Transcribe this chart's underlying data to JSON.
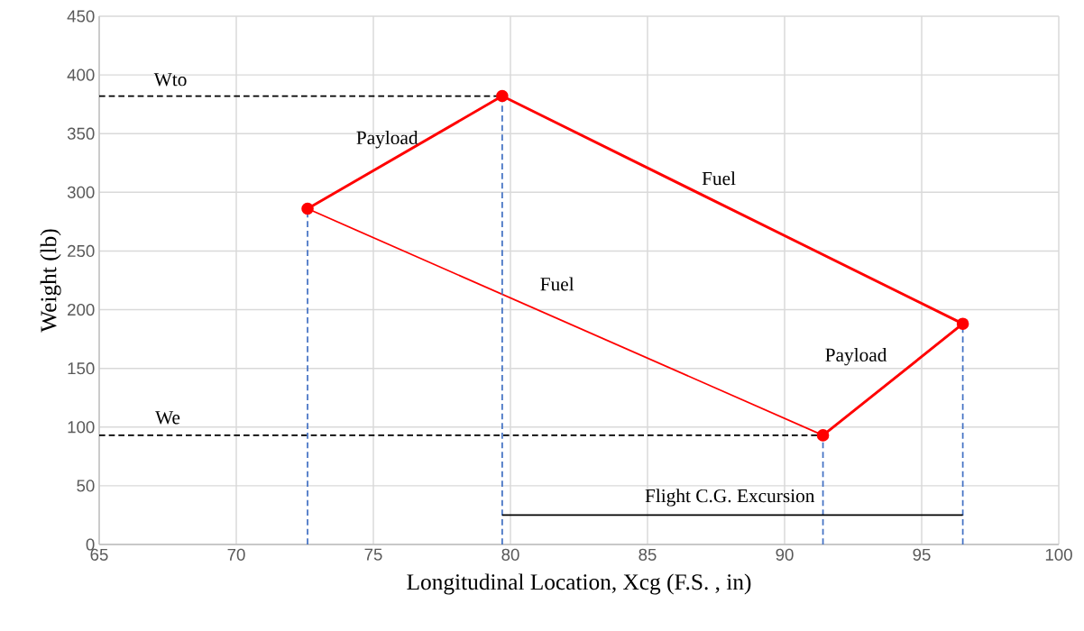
{
  "chart_data": {
    "type": "line",
    "xlabel": "Longitudinal Location, Xcg (F.S. , in)",
    "ylabel": "Weight (lb)",
    "xlim": [
      65,
      100
    ],
    "xticks": [
      65,
      70,
      75,
      80,
      85,
      90,
      95,
      100
    ],
    "ylim": [
      0,
      450
    ],
    "yticks": [
      0,
      50,
      100,
      150,
      200,
      250,
      300,
      350,
      400,
      450
    ],
    "grid": true,
    "series": [
      {
        "color": "#ff0000",
        "marker": "circle",
        "line_style": "solid",
        "x": [
          72.6,
          79.7,
          96.5,
          91.4
        ],
        "values": [
          286,
          382,
          188,
          93
        ]
      },
      {
        "color": "#ff0000",
        "marker": "none",
        "line_style": "solid",
        "x": [
          91.4,
          72.6
        ],
        "values": [
          93,
          286
        ]
      },
      {
        "color": "#000000",
        "marker": "none",
        "line_style": "dashed",
        "x": [
          65,
          79.7
        ],
        "values": [
          382,
          382
        ]
      },
      {
        "color": "#000000",
        "marker": "none",
        "line_style": "dashed",
        "x": [
          65,
          91.4
        ],
        "values": [
          93,
          93
        ]
      },
      {
        "color": "#4472c4",
        "marker": "none",
        "line_style": "dashed",
        "x": [
          72.6,
          72.6
        ],
        "values": [
          0,
          286
        ]
      },
      {
        "color": "#4472c4",
        "marker": "none",
        "line_style": "dashed",
        "x": [
          79.7,
          79.7
        ],
        "values": [
          0,
          382
        ]
      },
      {
        "color": "#4472c4",
        "marker": "none",
        "line_style": "dashed",
        "x": [
          91.4,
          91.4
        ],
        "values": [
          0,
          93
        ]
      },
      {
        "color": "#4472c4",
        "marker": "none",
        "line_style": "dashed",
        "x": [
          96.5,
          96.5
        ],
        "values": [
          0,
          188
        ]
      },
      {
        "color": "#000000",
        "marker": "none",
        "line_style": "solid",
        "x": [
          79.7,
          96.5
        ],
        "values": [
          25,
          25
        ]
      }
    ],
    "annotations": [
      "Wto",
      "We",
      "Payload",
      "Payload",
      "Fuel",
      "Fuel",
      "Flight C.G. Excursion"
    ]
  }
}
